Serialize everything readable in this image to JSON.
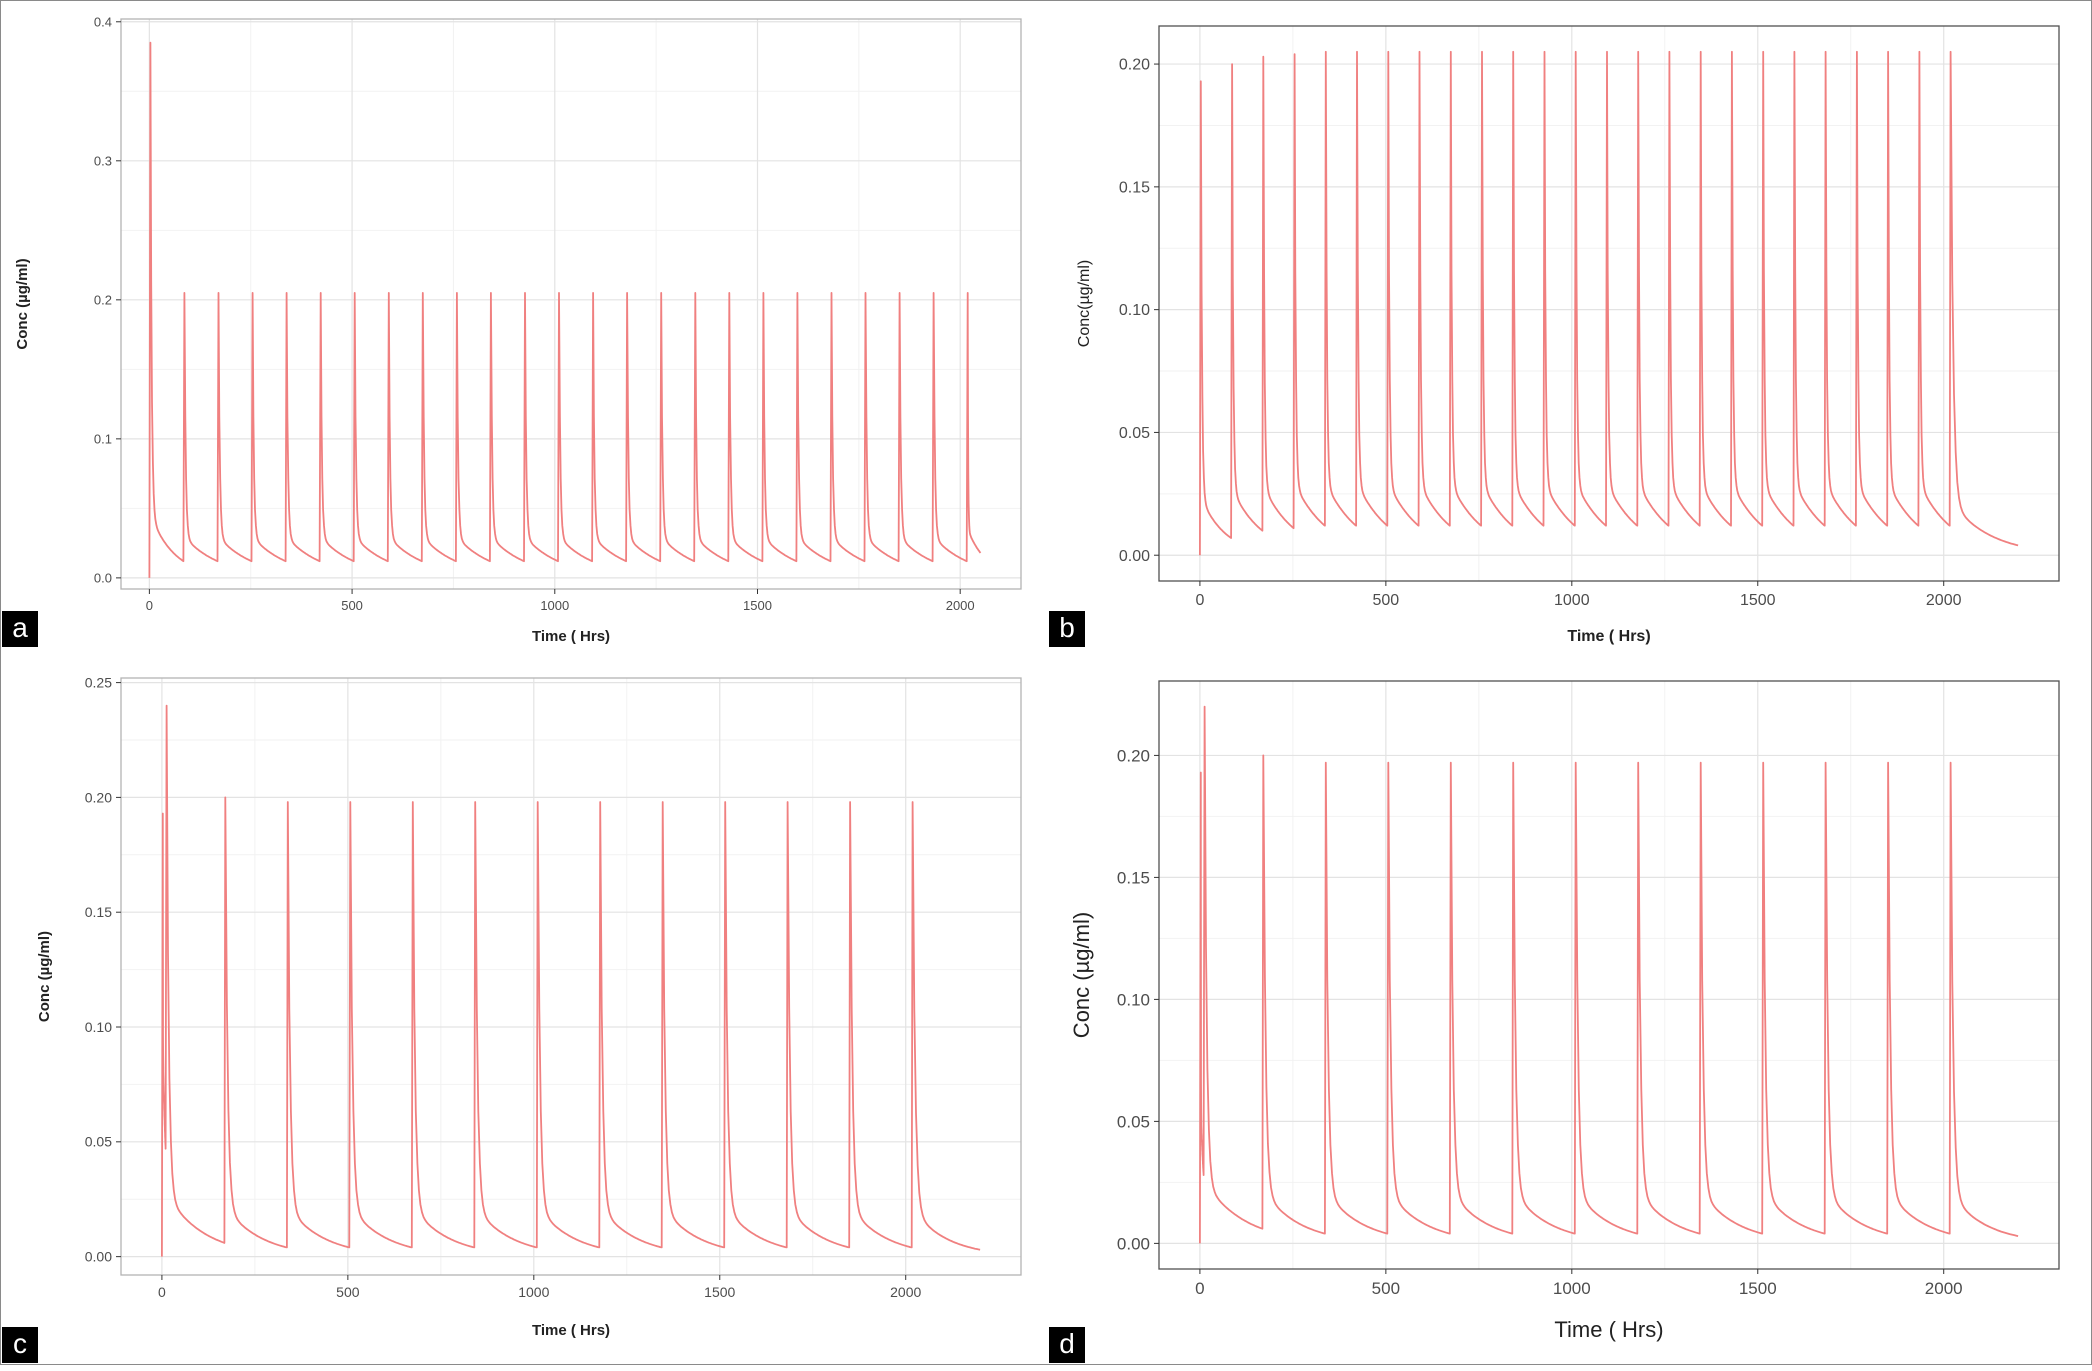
{
  "chart_data": [
    {
      "panel": "a",
      "type": "line",
      "xlabel": "Time ( Hrs)",
      "ylabel": "Conc (µg/ml)",
      "xlim": [
        -70,
        2150
      ],
      "ylim": [
        -0.008,
        0.402
      ],
      "xticks": [
        0,
        500,
        1000,
        1500,
        2000
      ],
      "xtick_labels": [
        "0",
        "500",
        "1000",
        "1500",
        "2000"
      ],
      "yticks": [
        0,
        0.1,
        0.2,
        0.3,
        0.4
      ],
      "ytick_labels": [
        "0.0",
        "0.1",
        "0.2",
        "0.3",
        "0.4"
      ],
      "grid": true,
      "line_color": "#f08080",
      "series": [
        {
          "profile": "repeated_dose",
          "dose_times": [
            0,
            84,
            168,
            252,
            336,
            420,
            504,
            588,
            672,
            756,
            840,
            924,
            1008,
            1092,
            1176,
            1260,
            1344,
            1428,
            1512,
            1596,
            1680,
            1764,
            1848,
            1932,
            2016
          ],
          "peaks": [
            0.385,
            0.205,
            0.205,
            0.205,
            0.205,
            0.205,
            0.205,
            0.205,
            0.205,
            0.205,
            0.205,
            0.205,
            0.205,
            0.205,
            0.205,
            0.205,
            0.205,
            0.205,
            0.205,
            0.205,
            0.205,
            0.205,
            0.205,
            0.205,
            0.205
          ],
          "troughs": [
            0.012,
            0.012,
            0.012,
            0.012,
            0.012,
            0.012,
            0.012,
            0.012,
            0.012,
            0.012,
            0.012,
            0.012,
            0.012,
            0.012,
            0.012,
            0.012,
            0.012,
            0.012,
            0.012,
            0.012,
            0.012,
            0.012,
            0.012,
            0.012,
            0.018
          ],
          "end_time": 2050
        }
      ]
    },
    {
      "panel": "b",
      "type": "line",
      "xlabel": "Time ( Hrs)",
      "ylabel": "Conc(µg/ml)",
      "xlim": [
        -110,
        2310
      ],
      "ylim": [
        -0.0105,
        0.2155
      ],
      "xticks": [
        0,
        500,
        1000,
        1500,
        2000
      ],
      "xtick_labels": [
        "0",
        "500",
        "1000",
        "1500",
        "2000"
      ],
      "yticks": [
        0,
        0.05,
        0.1,
        0.15,
        0.2
      ],
      "ytick_labels": [
        "0.00",
        "0.05",
        "0.10",
        "0.15",
        "0.20"
      ],
      "grid": true,
      "line_color": "#f08080",
      "series": [
        {
          "profile": "repeated_dose",
          "dose_times": [
            0,
            84,
            168,
            252,
            336,
            420,
            504,
            588,
            672,
            756,
            840,
            924,
            1008,
            1092,
            1176,
            1260,
            1344,
            1428,
            1512,
            1596,
            1680,
            1764,
            1848,
            1932,
            2016
          ],
          "peaks": [
            0.193,
            0.2,
            0.203,
            0.204,
            0.205,
            0.205,
            0.205,
            0.205,
            0.205,
            0.205,
            0.205,
            0.205,
            0.205,
            0.205,
            0.205,
            0.205,
            0.205,
            0.205,
            0.205,
            0.205,
            0.205,
            0.205,
            0.205,
            0.205,
            0.205
          ],
          "troughs": [
            0.007,
            0.01,
            0.011,
            0.012,
            0.012,
            0.012,
            0.012,
            0.012,
            0.012,
            0.012,
            0.012,
            0.012,
            0.012,
            0.012,
            0.012,
            0.012,
            0.012,
            0.012,
            0.012,
            0.012,
            0.012,
            0.012,
            0.012,
            0.012,
            0.004
          ],
          "end_time": 2200
        }
      ]
    },
    {
      "panel": "c",
      "type": "line",
      "xlabel": "Time ( Hrs)",
      "ylabel": "Conc (µg/ml)",
      "xlim": [
        -110,
        2310
      ],
      "ylim": [
        -0.008,
        0.252
      ],
      "xticks": [
        0,
        500,
        1000,
        1500,
        2000
      ],
      "xtick_labels": [
        "0",
        "500",
        "1000",
        "1500",
        "2000"
      ],
      "yticks": [
        0,
        0.05,
        0.1,
        0.15,
        0.2,
        0.25
      ],
      "ytick_labels": [
        "0.00",
        "0.05",
        "0.10",
        "0.15",
        "0.20",
        "0.25"
      ],
      "grid": true,
      "line_color": "#f08080",
      "series": [
        {
          "profile": "repeated_dose",
          "dose_times": [
            0,
            10,
            168,
            336,
            504,
            672,
            840,
            1008,
            1176,
            1344,
            1512,
            1680,
            1848,
            2016
          ],
          "peaks": [
            0.193,
            0.24,
            0.2,
            0.198,
            0.198,
            0.198,
            0.198,
            0.198,
            0.198,
            0.198,
            0.198,
            0.198,
            0.198,
            0.198
          ],
          "troughs": [
            0.047,
            0.006,
            0.004,
            0.004,
            0.004,
            0.004,
            0.004,
            0.004,
            0.004,
            0.004,
            0.004,
            0.004,
            0.004,
            0.003
          ],
          "end_time": 2200
        }
      ]
    },
    {
      "panel": "d",
      "type": "line",
      "xlabel": "Time ( Hrs)",
      "ylabel": "Conc (µg/ml)",
      "xlim": [
        -110,
        2310
      ],
      "ylim": [
        -0.0105,
        0.2305
      ],
      "xticks": [
        0,
        500,
        1000,
        1500,
        2000
      ],
      "xtick_labels": [
        "0",
        "500",
        "1000",
        "1500",
        "2000"
      ],
      "yticks": [
        0,
        0.05,
        0.1,
        0.15,
        0.2
      ],
      "ytick_labels": [
        "0.00",
        "0.05",
        "0.10",
        "0.15",
        "0.20"
      ],
      "grid": true,
      "line_color": "#f08080",
      "series": [
        {
          "profile": "repeated_dose",
          "dose_times": [
            0,
            10,
            168,
            336,
            504,
            672,
            840,
            1008,
            1176,
            1344,
            1512,
            1680,
            1848,
            2016
          ],
          "peaks": [
            0.193,
            0.22,
            0.2,
            0.197,
            0.197,
            0.197,
            0.197,
            0.197,
            0.197,
            0.197,
            0.197,
            0.197,
            0.197,
            0.197
          ],
          "troughs": [
            0.028,
            0.006,
            0.004,
            0.004,
            0.004,
            0.004,
            0.004,
            0.004,
            0.004,
            0.004,
            0.004,
            0.004,
            0.004,
            0.003
          ],
          "end_time": 2200
        }
      ]
    }
  ]
}
